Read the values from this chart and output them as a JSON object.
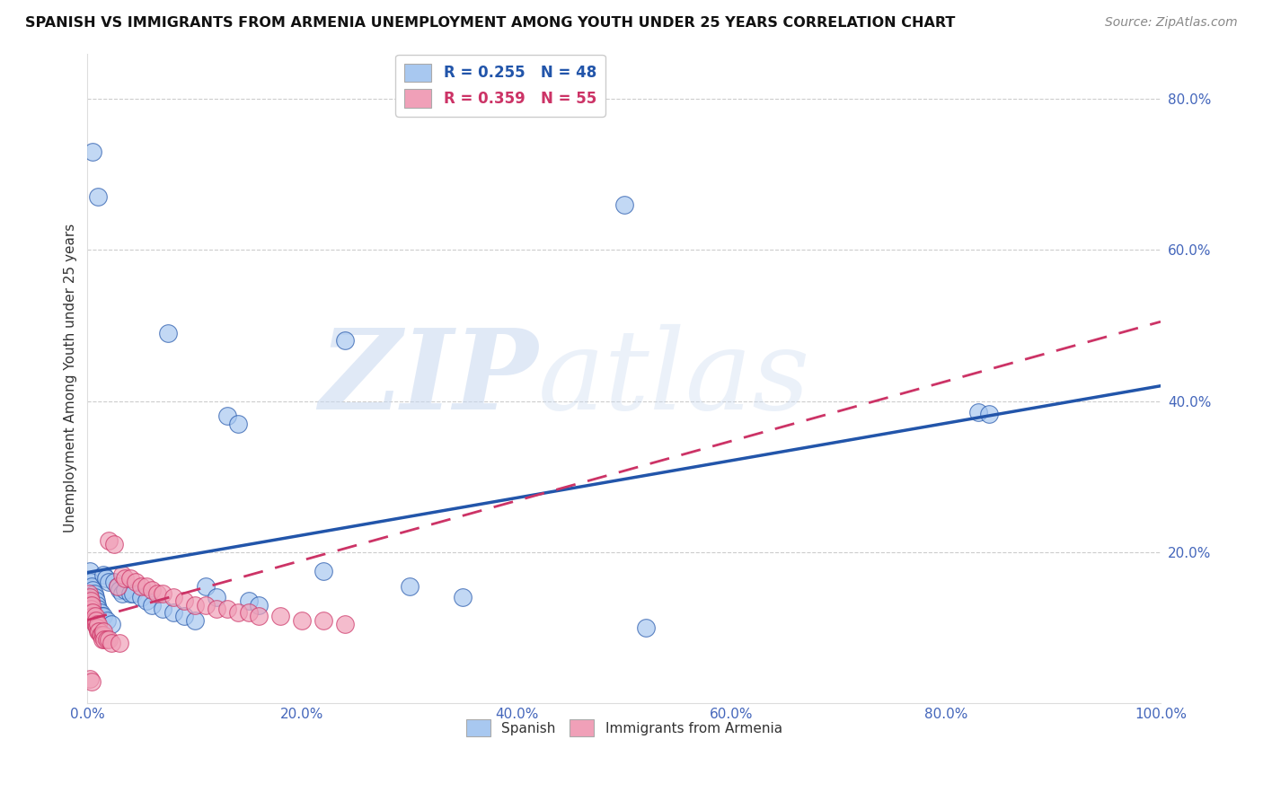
{
  "title": "SPANISH VS IMMIGRANTS FROM ARMENIA UNEMPLOYMENT AMONG YOUTH UNDER 25 YEARS CORRELATION CHART",
  "source": "Source: ZipAtlas.com",
  "ylabel": "Unemployment Among Youth under 25 years",
  "xlim": [
    0,
    1.0
  ],
  "ylim": [
    0,
    0.86
  ],
  "color_spanish": "#a8c8f0",
  "color_armenia": "#f0a0b8",
  "color_line_spanish": "#2255aa",
  "color_line_armenia": "#cc3366",
  "background_color": "#ffffff",
  "watermark_zip": "ZIP",
  "watermark_atlas": "atlas",
  "sp_line_x0": 0.0,
  "sp_line_y0": 0.173,
  "sp_line_x1": 1.0,
  "sp_line_y1": 0.42,
  "ar_line_x0": 0.0,
  "ar_line_y0": 0.11,
  "ar_line_x1": 1.0,
  "ar_line_y1": 0.505,
  "spanish_x": [
    0.002,
    0.003,
    0.004,
    0.005,
    0.005,
    0.006,
    0.007,
    0.008,
    0.009,
    0.01,
    0.01,
    0.012,
    0.013,
    0.015,
    0.015,
    0.017,
    0.018,
    0.02,
    0.022,
    0.025,
    0.028,
    0.03,
    0.032,
    0.035,
    0.04,
    0.042,
    0.05,
    0.055,
    0.06,
    0.07,
    0.075,
    0.08,
    0.09,
    0.1,
    0.11,
    0.12,
    0.13,
    0.14,
    0.15,
    0.16,
    0.22,
    0.24,
    0.3,
    0.35,
    0.5,
    0.52,
    0.83,
    0.84
  ],
  "spanish_y": [
    0.175,
    0.16,
    0.155,
    0.15,
    0.73,
    0.145,
    0.14,
    0.135,
    0.13,
    0.125,
    0.67,
    0.12,
    0.115,
    0.17,
    0.115,
    0.165,
    0.11,
    0.16,
    0.105,
    0.16,
    0.155,
    0.15,
    0.145,
    0.15,
    0.145,
    0.145,
    0.14,
    0.135,
    0.13,
    0.125,
    0.49,
    0.12,
    0.115,
    0.11,
    0.155,
    0.14,
    0.38,
    0.37,
    0.135,
    0.13,
    0.175,
    0.48,
    0.155,
    0.14,
    0.66,
    0.1,
    0.385,
    0.383
  ],
  "armenia_x": [
    0.001,
    0.002,
    0.002,
    0.003,
    0.003,
    0.004,
    0.004,
    0.005,
    0.005,
    0.006,
    0.007,
    0.007,
    0.008,
    0.008,
    0.009,
    0.01,
    0.01,
    0.011,
    0.012,
    0.013,
    0.014,
    0.015,
    0.015,
    0.016,
    0.018,
    0.02,
    0.02,
    0.022,
    0.025,
    0.028,
    0.03,
    0.032,
    0.035,
    0.04,
    0.045,
    0.05,
    0.055,
    0.06,
    0.065,
    0.07,
    0.08,
    0.09,
    0.1,
    0.11,
    0.12,
    0.13,
    0.14,
    0.15,
    0.16,
    0.18,
    0.2,
    0.22,
    0.24,
    0.002,
    0.004
  ],
  "armenia_y": [
    0.145,
    0.14,
    0.13,
    0.135,
    0.125,
    0.12,
    0.13,
    0.115,
    0.12,
    0.11,
    0.105,
    0.115,
    0.105,
    0.11,
    0.1,
    0.095,
    0.105,
    0.095,
    0.09,
    0.09,
    0.085,
    0.09,
    0.095,
    0.085,
    0.085,
    0.215,
    0.085,
    0.08,
    0.21,
    0.155,
    0.08,
    0.17,
    0.165,
    0.165,
    0.16,
    0.155,
    0.155,
    0.15,
    0.145,
    0.145,
    0.14,
    0.135,
    0.13,
    0.13,
    0.125,
    0.125,
    0.12,
    0.12,
    0.115,
    0.115,
    0.11,
    0.11,
    0.105,
    0.032,
    0.028
  ]
}
